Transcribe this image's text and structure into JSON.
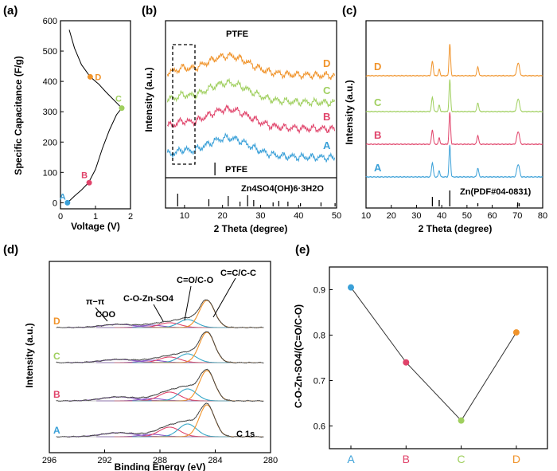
{
  "chart_data": [
    {
      "panel": "(a)",
      "type": "line",
      "xlabel": "Voltage (V)",
      "ylabel": "Specific Capacitance (F/g)",
      "xlim": [
        0,
        2
      ],
      "ylim": [
        -20,
        600
      ],
      "xticks": [
        "0",
        "1",
        "2"
      ],
      "yticks": [
        "0",
        "100",
        "200",
        "300",
        "400",
        "500",
        "600"
      ],
      "curve": [
        [
          0.2,
          0
        ],
        [
          0.4,
          22
        ],
        [
          0.6,
          42
        ],
        [
          0.8,
          66
        ],
        [
          1.0,
          110
        ],
        [
          1.2,
          180
        ],
        [
          1.4,
          240
        ],
        [
          1.6,
          290
        ],
        [
          1.75,
          312
        ],
        [
          1.6,
          330
        ],
        [
          1.3,
          365
        ],
        [
          1.1,
          390
        ],
        [
          0.85,
          415
        ],
        [
          0.6,
          455
        ],
        [
          0.4,
          510
        ],
        [
          0.25,
          570
        ]
      ],
      "points": [
        {
          "label": "A",
          "x": 0.2,
          "y": 0,
          "color": "#3aa0d8"
        },
        {
          "label": "B",
          "x": 0.82,
          "y": 66,
          "color": "#e0436a"
        },
        {
          "label": "C",
          "x": 1.75,
          "y": 312,
          "color": "#9fcf5e"
        },
        {
          "label": "D",
          "x": 0.85,
          "y": 415,
          "color": "#f0932a"
        }
      ]
    },
    {
      "panel": "(b)",
      "type": "line",
      "xlabel": "2 Theta (degree)",
      "ylabel": "Intensity (a.u.)",
      "xlim": [
        5,
        50
      ],
      "xticks": [
        "10",
        "20",
        "30",
        "40",
        "50"
      ],
      "series_labels": [
        "D",
        "C",
        "B",
        "A"
      ],
      "series_colors": [
        "#f0932a",
        "#9fcf5e",
        "#e0436a",
        "#3aa0d8"
      ],
      "annotation": "PTFE",
      "ref_labels": [
        "PTFE",
        "Zn4SO4(OH)6·3H2O"
      ],
      "ptfe_peaks": [
        18
      ],
      "zso_peaks": [
        8.2,
        16.4,
        21.5,
        24.6,
        26.6,
        28.2,
        33.3,
        34.8,
        37.2,
        40.5,
        45.9,
        49.6
      ]
    },
    {
      "panel": "(c)",
      "type": "line",
      "xlabel": "2 Theta (degree)",
      "ylabel": "Intensity (a.u.)",
      "xlim": [
        10,
        80
      ],
      "xticks": [
        "10",
        "20",
        "30",
        "40",
        "50",
        "60",
        "70",
        "80"
      ],
      "series_labels": [
        "D",
        "C",
        "B",
        "A"
      ],
      "series_colors": [
        "#f0932a",
        "#9fcf5e",
        "#e0436a",
        "#3aa0d8"
      ],
      "ref_label": "Zn(PDF#04-0831)",
      "ref_peaks": [
        36.3,
        39.0,
        43.2,
        54.3,
        70.1,
        70.7
      ]
    },
    {
      "panel": "(d)",
      "type": "line",
      "xlabel": "Binding Energy (eV)",
      "ylabel": "Intensity (a.u.)",
      "xlim": [
        296,
        280
      ],
      "xticks": [
        "296",
        "292",
        "288",
        "284",
        "280"
      ],
      "series_labels": [
        "D",
        "C",
        "B",
        "A"
      ],
      "series_colors": [
        "#f0932a",
        "#9fcf5e",
        "#e0436a",
        "#3aa0d8"
      ],
      "peak_labels": [
        "π−π",
        "COO",
        "C-O-Zn-SO4",
        "C=O/C-O",
        "C=C/C-C"
      ],
      "core_level": "C 1s",
      "components_eV": [
        291.0,
        288.6,
        287.3,
        286.0,
        284.6
      ]
    },
    {
      "panel": "(e)",
      "type": "line",
      "xlabel": "",
      "ylabel": "C-O-Zn-SO4/(C=O/C-O)",
      "categories": [
        "A",
        "B",
        "C",
        "D"
      ],
      "values": [
        0.905,
        0.74,
        0.612,
        0.806
      ],
      "colors": [
        "#3aa0d8",
        "#e0436a",
        "#9fcf5e",
        "#f0932a"
      ],
      "ylim": [
        0.55,
        0.95
      ],
      "yticks": [
        "0.6",
        "0.7",
        "0.8",
        "0.9"
      ]
    }
  ]
}
